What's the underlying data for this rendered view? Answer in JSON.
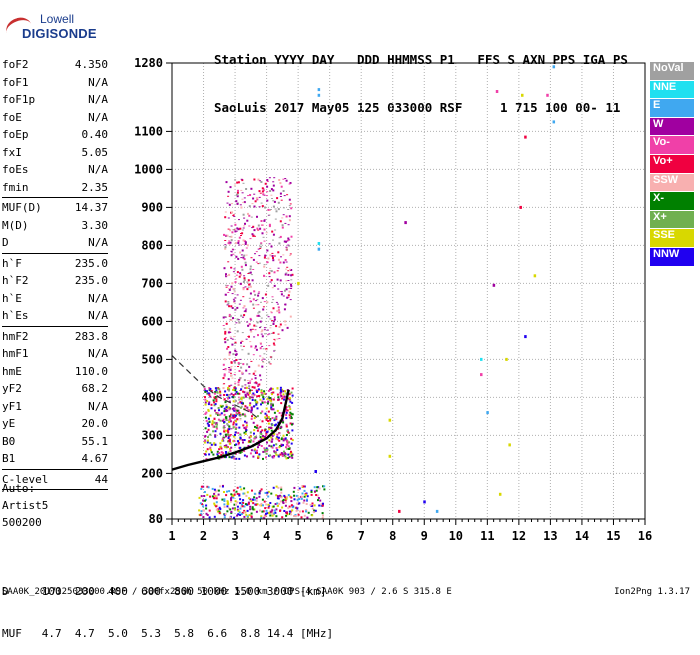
{
  "logo": {
    "line1": "Lowell",
    "line2": "DIGISONDE"
  },
  "header": {
    "line1": "Station YYYY DAY   DDD HHMMSS P1   FFS S AXN PPS IGA PS",
    "line2": "SaoLuis 2017 May05 125 033000 RSF     1 715 100 00- 11"
  },
  "parameters": [
    {
      "key": "foF2",
      "value": "4.350"
    },
    {
      "key": "foF1",
      "value": "N/A"
    },
    {
      "key": "foF1p",
      "value": "N/A"
    },
    {
      "key": "foE",
      "value": "N/A"
    },
    {
      "key": "foEp",
      "value": "0.40"
    },
    {
      "key": "fxI",
      "value": "5.05"
    },
    {
      "key": "foEs",
      "value": "N/A"
    },
    {
      "key": "fmin",
      "value": "2.35"
    },
    {
      "sep": true
    },
    {
      "key": "MUF(D)",
      "value": "14.37"
    },
    {
      "key": "M(D)",
      "value": "3.30"
    },
    {
      "key": "D",
      "value": "N/A"
    },
    {
      "sep": true
    },
    {
      "key": "h`F",
      "value": "235.0"
    },
    {
      "key": "h`F2",
      "value": "235.0"
    },
    {
      "key": "h`E",
      "value": "N/A"
    },
    {
      "key": "h`Es",
      "value": "N/A"
    },
    {
      "sep": true
    },
    {
      "key": "hmF2",
      "value": "283.8"
    },
    {
      "key": "hmF1",
      "value": "N/A"
    },
    {
      "key": "hmE",
      "value": "110.0"
    },
    {
      "key": "yF2",
      "value": "68.2"
    },
    {
      "key": "yF1",
      "value": "N/A"
    },
    {
      "key": "yE",
      "value": "20.0"
    },
    {
      "key": "B0",
      "value": "55.1"
    },
    {
      "key": "B1",
      "value": "4.67"
    },
    {
      "sep": true
    },
    {
      "key": "C-level",
      "value": "44"
    },
    {
      "sep": true
    }
  ],
  "auto": {
    "line1": "Auto:",
    "line2": "Artist5",
    "line3": "500200"
  },
  "dmuf": {
    "d_line": "D     100  200  400  600  800 1000 1500 3000 [km]",
    "muf_line": "MUF   4.7  4.7  5.0  5.3  5.8  6.6  8.8 14.4 [MHz]"
  },
  "footer": "SAA0K_2017125033000.RSF / 300fx256h 50 kHz 5.0 km / DPS-4 SAA0K 903 / 2.6 S 315.8 E",
  "version": "Ion2Png 1.3.17",
  "legend": [
    {
      "label": "NoVal",
      "color": "#a0a0a0"
    },
    {
      "label": "NNE",
      "color": "#20e0f0"
    },
    {
      "label": "E",
      "color": "#40a8f0"
    },
    {
      "label": "W",
      "color": "#a000a0"
    },
    {
      "label": "Vo-",
      "color": "#f040a8"
    },
    {
      "label": "Vo+",
      "color": "#f00040"
    },
    {
      "label": "SSW",
      "color": "#f8b0b0"
    },
    {
      "label": "X-",
      "color": "#008000"
    },
    {
      "label": "X+",
      "color": "#70b050"
    },
    {
      "label": "SSE",
      "color": "#d8d800"
    },
    {
      "label": "NNW",
      "color": "#2000f0"
    }
  ],
  "chart_data": {
    "type": "scatter",
    "x_range": [
      1,
      16
    ],
    "y_range": [
      80,
      1280
    ],
    "x_ticks": [
      1,
      2,
      3,
      4,
      5,
      6,
      7,
      8,
      9,
      10,
      11,
      12,
      13,
      14,
      15,
      16
    ],
    "y_ticks": [
      80,
      200,
      300,
      400,
      500,
      600,
      700,
      800,
      900,
      1000,
      1100,
      1280
    ],
    "grid": true,
    "legend_position": "right",
    "trace": {
      "freq": [
        1.0,
        1.5,
        2.0,
        2.5,
        3.0,
        3.5,
        4.0,
        4.3,
        4.5,
        4.7
      ],
      "height": [
        210,
        222,
        232,
        242,
        255,
        270,
        292,
        315,
        345,
        420
      ]
    },
    "profile": {
      "freq": [
        1.0,
        1.5,
        2.0,
        2.5,
        3.0,
        3.5,
        3.8
      ],
      "height": [
        510,
        470,
        430,
        400,
        380,
        360,
        340
      ]
    },
    "points": [
      {
        "x": 5.65,
        "y": 1210,
        "c": "E"
      },
      {
        "x": 5.65,
        "y": 1195,
        "c": "E"
      },
      {
        "x": 5.65,
        "y": 790,
        "c": "E"
      },
      {
        "x": 5.65,
        "y": 805,
        "c": "NNE"
      },
      {
        "x": 5.55,
        "y": 205,
        "c": "NNW"
      },
      {
        "x": 8.4,
        "y": 860,
        "c": "W"
      },
      {
        "x": 7.9,
        "y": 245,
        "c": "SSE"
      },
      {
        "x": 7.9,
        "y": 340,
        "c": "SSE"
      },
      {
        "x": 11.2,
        "y": 695,
        "c": "W"
      },
      {
        "x": 11.3,
        "y": 1205,
        "c": "Vo-"
      },
      {
        "x": 11.6,
        "y": 500,
        "c": "SSE"
      },
      {
        "x": 12.5,
        "y": 720,
        "c": "SSE"
      },
      {
        "x": 12.05,
        "y": 900,
        "c": "Vo+"
      },
      {
        "x": 12.2,
        "y": 1085,
        "c": "Vo+"
      },
      {
        "x": 12.2,
        "y": 560,
        "c": "NNW"
      },
      {
        "x": 11.0,
        "y": 360,
        "c": "E"
      },
      {
        "x": 13.1,
        "y": 1270,
        "c": "E"
      },
      {
        "x": 13.1,
        "y": 1125,
        "c": "E"
      },
      {
        "x": 12.9,
        "y": 1195,
        "c": "Vo-"
      },
      {
        "x": 11.4,
        "y": 145,
        "c": "SSE"
      },
      {
        "x": 10.8,
        "y": 500,
        "c": "NNE"
      },
      {
        "x": 10.8,
        "y": 460,
        "c": "Vo-"
      },
      {
        "x": 11.7,
        "y": 275,
        "c": "SSE"
      },
      {
        "x": 12.1,
        "y": 1195,
        "c": "SSE"
      },
      {
        "x": 9.0,
        "y": 125,
        "c": "NNW"
      },
      {
        "x": 8.2,
        "y": 100,
        "c": "Vo+"
      },
      {
        "x": 9.4,
        "y": 100,
        "c": "E"
      },
      {
        "x": 5.0,
        "y": 700,
        "c": "SSE"
      }
    ],
    "clusters": [
      {
        "x": [
          2.6,
          4.8
        ],
        "y": [
          200,
          980
        ],
        "n": 1400,
        "c": [
          "W",
          "Vo-",
          "SSW",
          "NoVal",
          "W",
          "Vo+"
        ]
      },
      {
        "x": [
          2.0,
          4.8
        ],
        "y": [
          240,
          430
        ],
        "n": 700,
        "c": [
          "Vo+",
          "X-",
          "W",
          "NNW",
          "SSE",
          "X+",
          "Vo-"
        ]
      },
      {
        "x": [
          1.8,
          5.8
        ],
        "y": [
          85,
          170
        ],
        "n": 380,
        "c": [
          "W",
          "NNW",
          "SSE",
          "Vo+",
          "X-",
          "SSW",
          "E"
        ]
      }
    ]
  }
}
